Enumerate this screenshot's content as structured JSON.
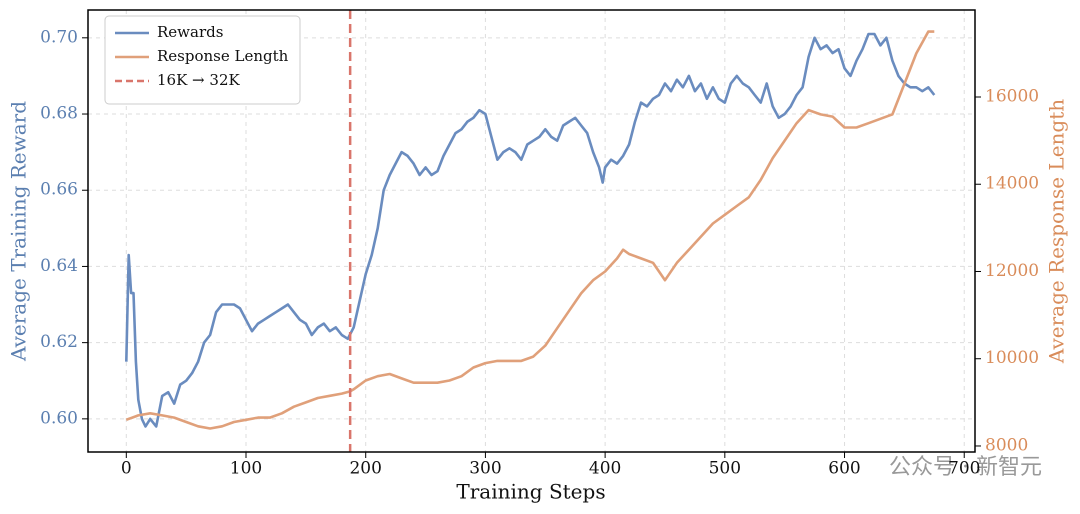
{
  "chart_data": {
    "type": "line",
    "xlabel": "Training Steps",
    "ylabel": "Average Training Reward",
    "y2label": "Average Response Length",
    "xlim": [
      -32,
      709
    ],
    "ylim": [
      0.5913,
      0.7073
    ],
    "y2lim": [
      7862,
      17994
    ],
    "xticks": [
      0,
      100,
      200,
      300,
      400,
      500,
      600,
      700
    ],
    "yticks": [
      {
        "value": 0.6,
        "label": "0.60"
      },
      0.62,
      0.64,
      0.66,
      0.68,
      {
        "value": 0.7,
        "label": "0.70"
      }
    ],
    "y2ticks": [
      8000,
      10000,
      12000,
      14000,
      16000
    ],
    "grid": true,
    "legend": "upper left",
    "series": [
      {
        "name": "Rewards",
        "color": "#6a8cbf",
        "x": [
          0,
          2,
          4,
          6,
          8,
          10,
          13,
          16,
          20,
          25,
          30,
          35,
          40,
          45,
          50,
          55,
          60,
          65,
          70,
          75,
          80,
          85,
          90,
          95,
          100,
          105,
          110,
          115,
          120,
          125,
          130,
          135,
          140,
          145,
          150,
          155,
          160,
          165,
          170,
          175,
          180,
          185,
          190,
          195,
          200,
          205,
          210,
          215,
          220,
          225,
          230,
          235,
          240,
          245,
          250,
          255,
          260,
          265,
          270,
          275,
          280,
          285,
          290,
          295,
          300,
          305,
          310,
          315,
          320,
          325,
          330,
          335,
          340,
          345,
          350,
          355,
          360,
          365,
          370,
          375,
          380,
          385,
          390,
          395,
          398,
          400,
          405,
          410,
          415,
          420,
          425,
          430,
          435,
          440,
          445,
          450,
          455,
          460,
          465,
          470,
          475,
          480,
          485,
          490,
          495,
          500,
          505,
          510,
          515,
          520,
          525,
          530,
          535,
          540,
          545,
          550,
          555,
          560,
          565,
          570,
          575,
          580,
          585,
          590,
          595,
          600,
          605,
          610,
          615,
          620,
          625,
          630,
          635,
          640,
          645,
          650,
          655,
          660,
          665,
          670,
          675
        ],
        "values": [
          0.615,
          0.643,
          0.633,
          0.633,
          0.615,
          0.605,
          0.6,
          0.598,
          0.6,
          0.598,
          0.606,
          0.607,
          0.604,
          0.609,
          0.61,
          0.612,
          0.615,
          0.62,
          0.622,
          0.628,
          0.63,
          0.63,
          0.63,
          0.629,
          0.626,
          0.623,
          0.625,
          0.626,
          0.627,
          0.628,
          0.629,
          0.63,
          0.628,
          0.626,
          0.625,
          0.622,
          0.624,
          0.625,
          0.623,
          0.624,
          0.622,
          0.621,
          0.624,
          0.631,
          0.638,
          0.643,
          0.65,
          0.66,
          0.664,
          0.667,
          0.67,
          0.669,
          0.667,
          0.664,
          0.666,
          0.664,
          0.665,
          0.669,
          0.672,
          0.675,
          0.676,
          0.678,
          0.679,
          0.681,
          0.68,
          0.674,
          0.668,
          0.67,
          0.671,
          0.67,
          0.668,
          0.672,
          0.673,
          0.674,
          0.676,
          0.674,
          0.673,
          0.677,
          0.678,
          0.679,
          0.677,
          0.675,
          0.67,
          0.666,
          0.662,
          0.666,
          0.668,
          0.667,
          0.669,
          0.672,
          0.678,
          0.683,
          0.682,
          0.684,
          0.685,
          0.688,
          0.686,
          0.689,
          0.687,
          0.69,
          0.686,
          0.688,
          0.684,
          0.687,
          0.684,
          0.683,
          0.688,
          0.69,
          0.688,
          0.687,
          0.685,
          0.683,
          0.688,
          0.682,
          0.679,
          0.68,
          0.682,
          0.685,
          0.687,
          0.695,
          0.7,
          0.697,
          0.698,
          0.696,
          0.697,
          0.692,
          0.69,
          0.694,
          0.697,
          0.701,
          0.701,
          0.698,
          0.7,
          0.694,
          0.69,
          0.688,
          0.687,
          0.687,
          0.686,
          0.687,
          0.685
        ]
      },
      {
        "name": "Response Length",
        "color": "#e0a07a",
        "axis": "y2",
        "x": [
          0,
          5,
          10,
          20,
          30,
          40,
          50,
          60,
          70,
          80,
          90,
          100,
          110,
          120,
          130,
          140,
          150,
          160,
          170,
          180,
          187,
          190,
          200,
          210,
          220,
          230,
          240,
          250,
          260,
          270,
          280,
          290,
          300,
          310,
          320,
          330,
          340,
          350,
          360,
          370,
          380,
          390,
          400,
          410,
          415,
          420,
          430,
          440,
          450,
          460,
          470,
          480,
          490,
          500,
          510,
          520,
          530,
          540,
          550,
          560,
          570,
          580,
          590,
          600,
          610,
          620,
          630,
          640,
          650,
          660,
          670,
          675
        ],
        "values": [
          8600,
          8650,
          8700,
          8750,
          8700,
          8650,
          8550,
          8450,
          8400,
          8450,
          8550,
          8600,
          8650,
          8650,
          8750,
          8900,
          9000,
          9100,
          9150,
          9200,
          9250,
          9300,
          9500,
          9600,
          9650,
          9550,
          9450,
          9450,
          9450,
          9500,
          9600,
          9800,
          9900,
          9950,
          9950,
          9950,
          10050,
          10300,
          10700,
          11100,
          11500,
          11800,
          12000,
          12300,
          12500,
          12400,
          12300,
          12200,
          11800,
          12200,
          12500,
          12800,
          13100,
          13300,
          13500,
          13700,
          14100,
          14600,
          15000,
          15400,
          15700,
          15600,
          15550,
          15300,
          15300,
          15400,
          15500,
          15600,
          16300,
          17000,
          17500,
          17500
        ]
      }
    ],
    "vline": {
      "name": "16K → 32K",
      "x": 187,
      "color": "#d9756b"
    },
    "watermark": "公众号 · 新智元"
  }
}
